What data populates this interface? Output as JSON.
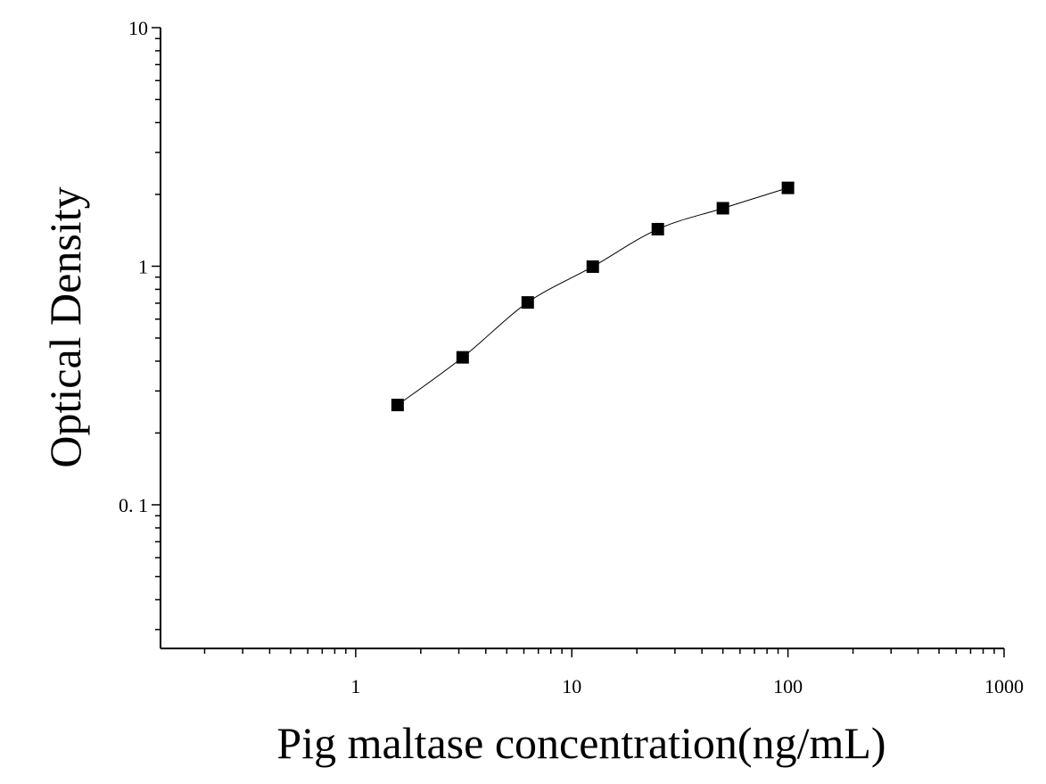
{
  "chart_data": {
    "type": "scatter",
    "xlabel": "Pig maltase concentration(ng/mL)",
    "ylabel": "Optical Density",
    "x_scale": "log",
    "y_scale": "log",
    "xlim": [
      0.125,
      1000
    ],
    "ylim": [
      0.025,
      10
    ],
    "x_ticks": [
      {
        "value": 1,
        "label": "1"
      },
      {
        "value": 10,
        "label": "10"
      },
      {
        "value": 100,
        "label": "100"
      },
      {
        "value": 1000,
        "label": "1000"
      }
    ],
    "y_ticks": [
      {
        "value": 0.1,
        "label": "0. 1"
      },
      {
        "value": 1,
        "label": "1"
      },
      {
        "value": 10,
        "label": "10"
      }
    ],
    "grid": false,
    "marker": "square",
    "marker_color": "#000000",
    "line_color": "#000000",
    "fit_line": true,
    "points": [
      {
        "x": 1.5625,
        "y": 0.262
      },
      {
        "x": 3.125,
        "y": 0.415
      },
      {
        "x": 6.25,
        "y": 0.705
      },
      {
        "x": 12.5,
        "y": 0.996
      },
      {
        "x": 25,
        "y": 1.43
      },
      {
        "x": 50,
        "y": 1.75
      },
      {
        "x": 100,
        "y": 2.13
      }
    ]
  }
}
